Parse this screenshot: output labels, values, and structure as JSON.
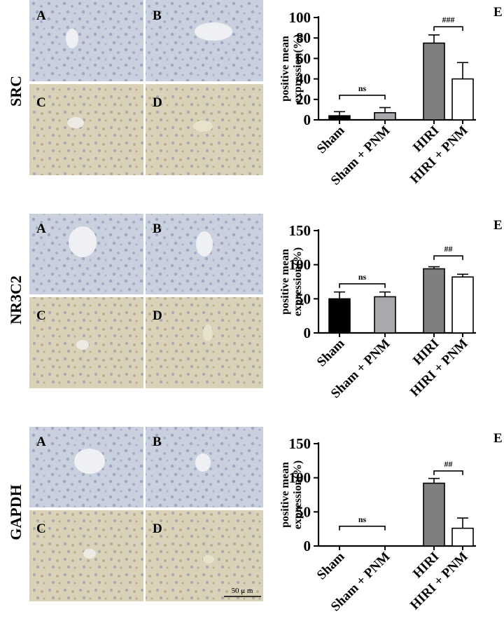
{
  "colors": {
    "tissue_blue": "#c9d0de",
    "tissue_brown": "#d9d2b8",
    "nuclei": "#8d94b8",
    "bar_black": "#000000",
    "bar_gray": "#a9a9ad",
    "bar_darkgray": "#7f7f7f",
    "bar_white": "#ffffff"
  },
  "scale_bar": "50 μ m",
  "chart_data": [
    {
      "type": "bar",
      "row_label": "SRC",
      "panel_labels": [
        "A",
        "B",
        "C",
        "D"
      ],
      "panel_letter": "E",
      "ylabel_line1": "positive mean",
      "ylabel_line2": "expression(%)",
      "categories": [
        "Sham",
        "Sham + PNM",
        "HIRI",
        "HIRI + PNM"
      ],
      "values": [
        4,
        7,
        75,
        40
      ],
      "errors": [
        4,
        5,
        8,
        16
      ],
      "ylim": [
        0,
        100
      ],
      "yticks": [
        0,
        20,
        40,
        60,
        80,
        100
      ],
      "annotations": [
        {
          "text": "ns",
          "between": [
            0,
            1
          ],
          "at": 24
        },
        {
          "text": "###",
          "between": [
            2,
            3
          ],
          "at": 91
        }
      ]
    },
    {
      "type": "bar",
      "row_label": "NR3C2",
      "panel_labels": [
        "A",
        "B",
        "C",
        "D"
      ],
      "panel_letter": "E",
      "ylabel_line1": "positive mean",
      "ylabel_line2": "expression(%)",
      "categories": [
        "Sham",
        "Sham + PNM",
        "HIRI",
        "HIRI + PNM"
      ],
      "values": [
        50,
        53,
        94,
        82
      ],
      "errors": [
        10,
        7,
        3,
        4
      ],
      "ylim": [
        0,
        150
      ],
      "yticks": [
        0,
        50,
        100,
        150
      ],
      "annotations": [
        {
          "text": "ns",
          "between": [
            0,
            1
          ],
          "at": 72
        },
        {
          "text": "##",
          "between": [
            2,
            3
          ],
          "at": 113
        }
      ]
    },
    {
      "type": "bar",
      "row_label": "GAPDH",
      "panel_labels": [
        "A",
        "B",
        "C",
        "D"
      ],
      "panel_letter": "E",
      "ylabel_line1": "positive mean",
      "ylabel_line2": "expression(%)",
      "categories": [
        "Sham",
        "Sham + PNM",
        "HIRI",
        "HIRI + PNM"
      ],
      "values": [
        0,
        0,
        92,
        26
      ],
      "errors": [
        0,
        0,
        7,
        15
      ],
      "ylim": [
        0,
        150
      ],
      "yticks": [
        0,
        50,
        100,
        150
      ],
      "annotations": [
        {
          "text": "ns",
          "between": [
            0,
            1
          ],
          "at": 29
        },
        {
          "text": "##",
          "between": [
            2,
            3
          ],
          "at": 110
        }
      ]
    }
  ]
}
